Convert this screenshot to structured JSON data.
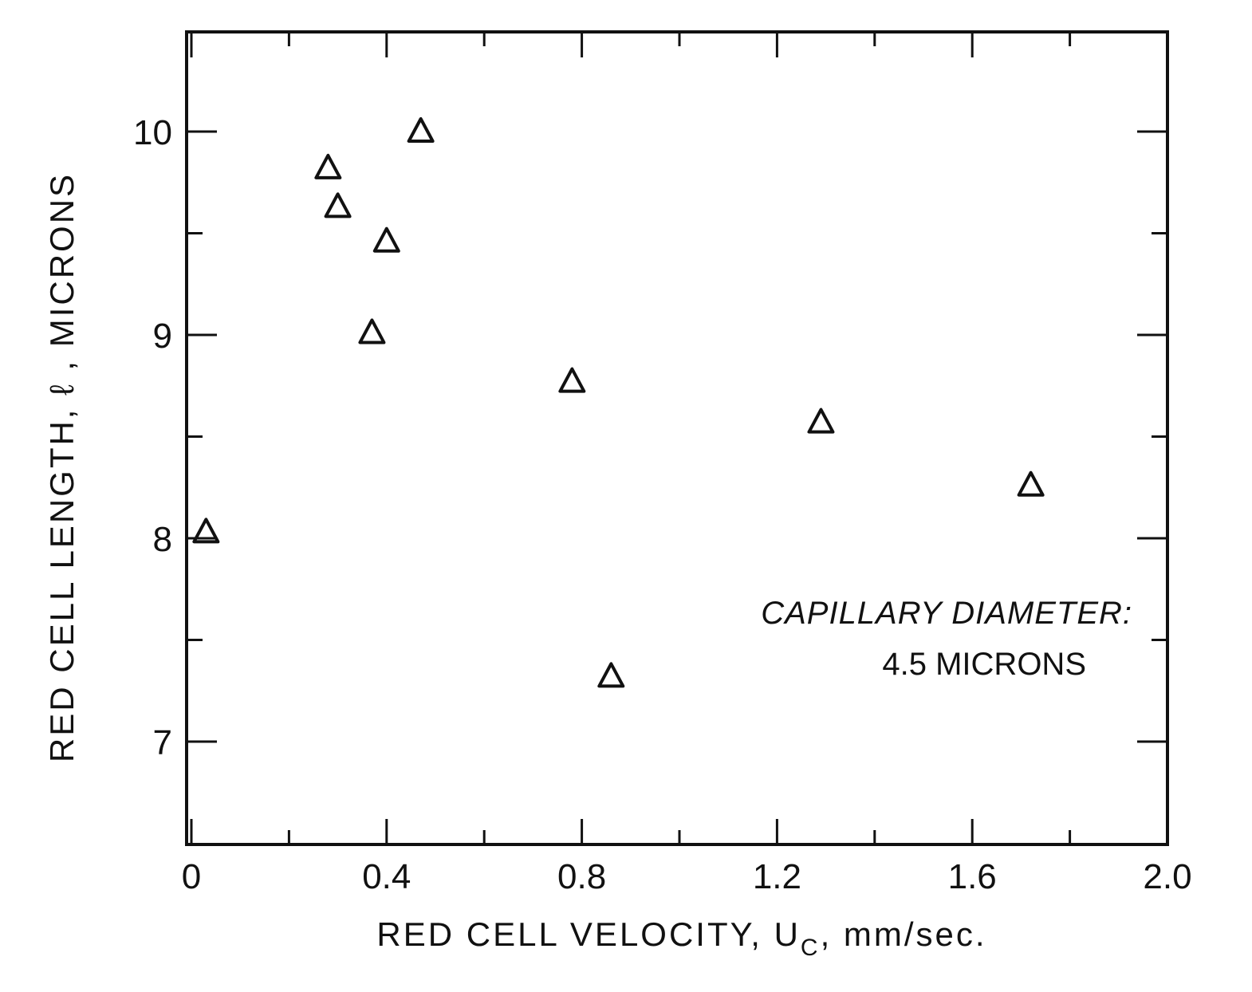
{
  "chart_data": {
    "type": "scatter",
    "title": "",
    "xlabel": "RED CELL VELOCITY, U",
    "xlabel_subscript": "C",
    "xlabel_unit": ", mm/sec.",
    "ylabel": "RED CELL LENGTH, ℓ , MICRONS",
    "xlim": [
      0,
      2.0
    ],
    "ylim": [
      6.5,
      10.5
    ],
    "xticks": [
      0,
      0.4,
      0.8,
      1.2,
      1.6,
      2.0
    ],
    "xtick_labels": [
      "0",
      "0.4",
      "0.8",
      "1.2",
      "1.6",
      "2.0"
    ],
    "xticks_minor": [
      0.2,
      0.6,
      1.0,
      1.4,
      1.8
    ],
    "yticks": [
      7,
      8,
      9,
      10
    ],
    "ytick_labels": [
      "7",
      "8",
      "9",
      "10"
    ],
    "yticks_minor": [
      7.5,
      8.5,
      9.5
    ],
    "grid": false,
    "marker": "open-triangle",
    "series": [
      {
        "points": [
          {
            "x": 0.03,
            "y": 8.03
          },
          {
            "x": 0.28,
            "y": 9.82
          },
          {
            "x": 0.3,
            "y": 9.63
          },
          {
            "x": 0.37,
            "y": 9.01
          },
          {
            "x": 0.4,
            "y": 9.46
          },
          {
            "x": 0.47,
            "y": 10.0
          },
          {
            "x": 0.78,
            "y": 8.77
          },
          {
            "x": 0.86,
            "y": 7.32
          },
          {
            "x": 1.29,
            "y": 8.57
          },
          {
            "x": 1.72,
            "y": 8.26
          }
        ]
      }
    ],
    "annotations": {
      "line1": "CAPILLARY DIAMETER:",
      "line2": "4.5 MICRONS"
    }
  }
}
